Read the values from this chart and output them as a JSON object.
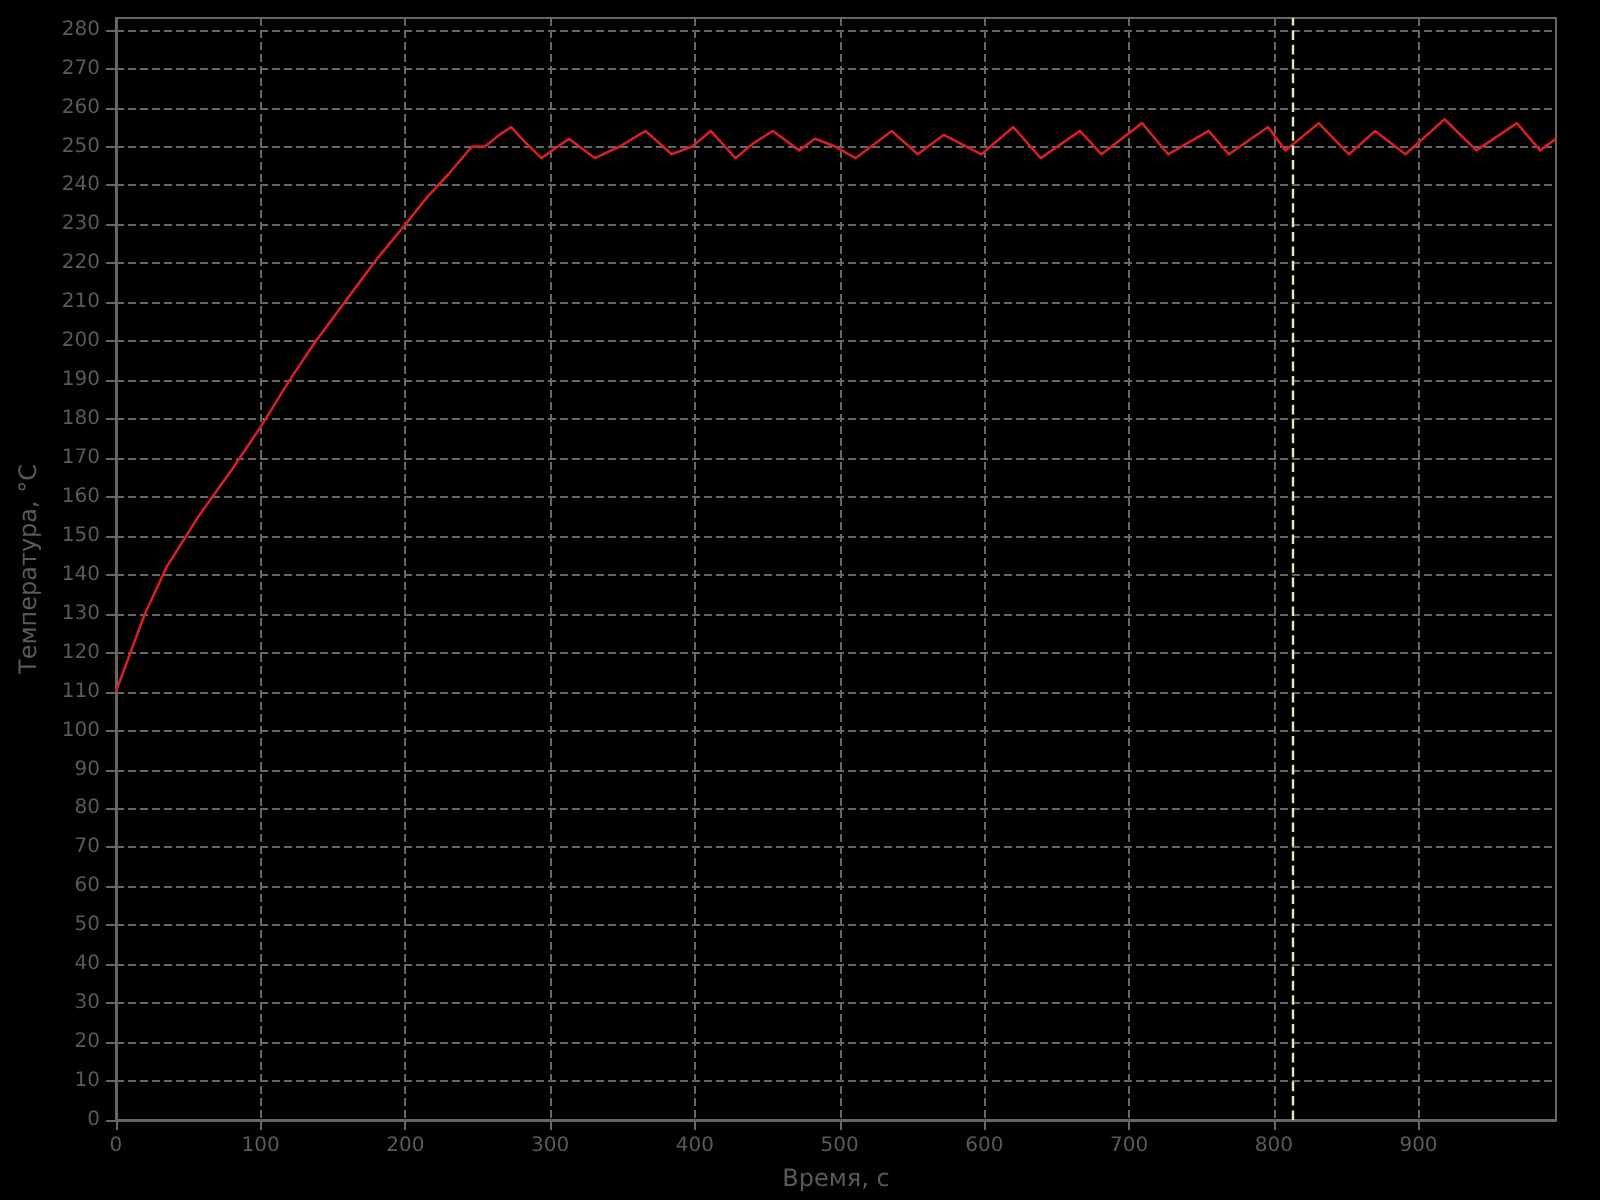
{
  "chart_data": {
    "type": "line",
    "xlabel": "Время, с",
    "ylabel": "Температура, °C",
    "xlim": [
      0,
      995
    ],
    "ylim": [
      0,
      283
    ],
    "xticks": [
      0,
      100,
      200,
      300,
      400,
      500,
      600,
      700,
      800,
      900
    ],
    "yticks": [
      0,
      10,
      20,
      30,
      40,
      50,
      60,
      70,
      80,
      90,
      100,
      110,
      120,
      130,
      140,
      150,
      160,
      170,
      180,
      190,
      200,
      210,
      220,
      230,
      240,
      250,
      260,
      270,
      280
    ],
    "grid": true,
    "line_style": "solid",
    "marker": "none",
    "series": [
      {
        "color": "#d42020",
        "x": [
          0,
          5,
          10,
          20,
          35,
          57,
          80,
          100,
          120,
          138,
          160,
          180,
          200,
          215,
          230,
          246,
          255,
          265,
          273,
          283,
          294,
          313,
          331,
          348,
          366,
          384,
          398,
          411,
          428,
          441,
          454,
          472,
          483,
          497,
          511,
          536,
          554,
          572,
          598,
          620,
          639,
          666,
          681,
          709,
          727,
          755,
          769,
          796,
          808,
          831,
          852,
          870,
          891,
          918,
          940,
          968,
          984,
          995
        ],
        "values": [
          110,
          115,
          120,
          130,
          142,
          155,
          167,
          178,
          190,
          200,
          211,
          221,
          230,
          237,
          243,
          250,
          250,
          253,
          255,
          251,
          247,
          252,
          247,
          250,
          254,
          248,
          250,
          254,
          247,
          251,
          254,
          249,
          252,
          250,
          247,
          254,
          248,
          253,
          248,
          255,
          247,
          254,
          248,
          256,
          248,
          254,
          248,
          255,
          249,
          256,
          248,
          254,
          248,
          257,
          249,
          256,
          249,
          252
        ]
      }
    ],
    "ref_lines": [
      {
        "axis": "x",
        "value": 813,
        "color": "#d8f0b0",
        "line_style": "dashed"
      }
    ]
  }
}
